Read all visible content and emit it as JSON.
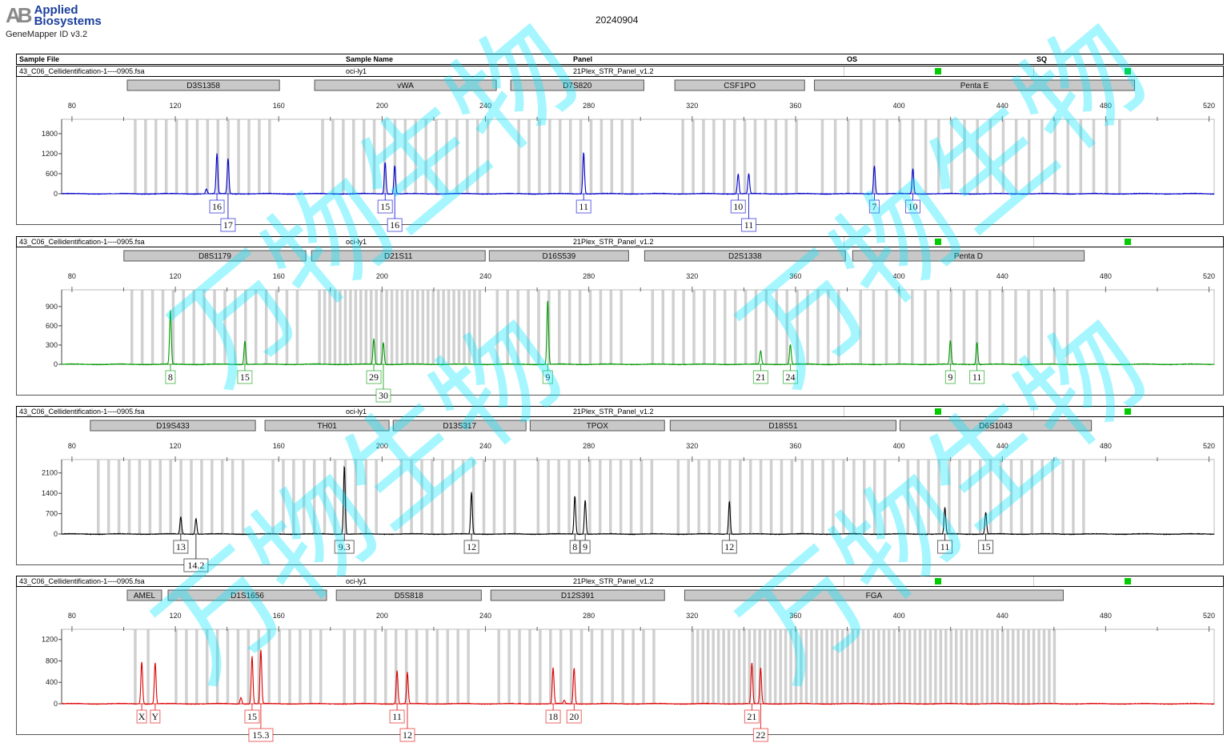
{
  "header": {
    "brand_mark": "AB",
    "brand_line1": "Applied",
    "brand_line2": "Biosystems",
    "app_version": "GeneMapper ID v3.2",
    "date": "20240904",
    "columns": [
      "Sample File",
      "Sample Name",
      "Panel",
      "OS",
      "SQ"
    ]
  },
  "watermark": "万物生物",
  "colors": {
    "blue": "#0000cc",
    "green": "#009900",
    "black": "#000000",
    "red": "#dd0000",
    "bin": "#d0d0d0",
    "marker": "#c8c8c8",
    "qc_pass": "#00cc00"
  },
  "chart_data": [
    {
      "type": "line",
      "dye": "blue",
      "sample_file": "43_C06_Cellidentification-1----0905.fsa",
      "sample_name": "oci-ly1",
      "panel": "21Plex_STR_Panel_v1.2",
      "os": "pass",
      "sq": "pass",
      "xlim": [
        76,
        522
      ],
      "xticks": [
        80,
        120,
        160,
        200,
        240,
        280,
        320,
        360,
        400,
        440,
        480,
        520
      ],
      "yticks": [
        0,
        600,
        1200,
        1800
      ],
      "ylim": [
        0,
        2230
      ],
      "markers": [
        {
          "name": "D3S1358",
          "range": [
            101.4,
            160.3
          ],
          "repeat": 4
        },
        {
          "name": "vWA",
          "range": [
            173.9,
            244.2
          ],
          "repeat": 4
        },
        {
          "name": "D7S820",
          "range": [
            249.8,
            301.3
          ],
          "repeat": 4
        },
        {
          "name": "CSF1PO",
          "range": [
            313.3,
            363.5
          ],
          "repeat": 4
        },
        {
          "name": "Penta E",
          "range": [
            367.3,
            491.2
          ],
          "repeat": 5
        }
      ],
      "peaks": [
        {
          "size": 132.0,
          "height": 150
        },
        {
          "size": 136.1,
          "height": 1200,
          "allele": "16"
        },
        {
          "size": 140.4,
          "height": 1050,
          "allele": "17"
        },
        {
          "size": 201.2,
          "height": 950,
          "allele": "15"
        },
        {
          "size": 204.9,
          "height": 850,
          "allele": "16"
        },
        {
          "size": 278.0,
          "height": 1250,
          "allele": "11"
        },
        {
          "size": 337.8,
          "height": 600,
          "allele": "10"
        },
        {
          "size": 341.9,
          "height": 600,
          "allele": "11"
        },
        {
          "size": 390.5,
          "height": 850,
          "allele": "7"
        },
        {
          "size": 405.4,
          "height": 750,
          "allele": "10"
        }
      ]
    },
    {
      "type": "line",
      "dye": "green",
      "sample_file": "43_C06_Cellidentification-1----0905.fsa",
      "sample_name": "oci-ly1",
      "panel": "21Plex_STR_Panel_v1.2",
      "os": "pass",
      "sq": "pass",
      "xlim": [
        76,
        522
      ],
      "xticks": [
        80,
        120,
        160,
        200,
        240,
        280,
        320,
        360,
        400,
        440,
        480,
        520
      ],
      "yticks": [
        0,
        300,
        600,
        900
      ],
      "ylim": [
        0,
        1160
      ],
      "markers": [
        {
          "name": "D8S1179",
          "range": [
            100.1,
            170.5
          ],
          "repeat": 4
        },
        {
          "name": "D21S11",
          "range": [
            172.7,
            239.9
          ],
          "repeat": 2
        },
        {
          "name": "D16S539",
          "range": [
            241.5,
            295.4
          ],
          "repeat": 4
        },
        {
          "name": "D2S1338",
          "range": [
            301.6,
            379.3
          ],
          "repeat": 4
        },
        {
          "name": "Penta D",
          "range": [
            382.1,
            471.7
          ],
          "repeat": 5
        }
      ],
      "peaks": [
        {
          "size": 118.1,
          "height": 840,
          "allele": "8"
        },
        {
          "size": 146.9,
          "height": 370,
          "allele": "15"
        },
        {
          "size": 196.8,
          "height": 395,
          "allele": "29"
        },
        {
          "size": 200.5,
          "height": 345,
          "allele": "30"
        },
        {
          "size": 264.1,
          "height": 1000,
          "allele": "9"
        },
        {
          "size": 346.5,
          "height": 210,
          "allele": "21"
        },
        {
          "size": 358.0,
          "height": 310,
          "allele": "24"
        },
        {
          "size": 419.9,
          "height": 370,
          "allele": "9"
        },
        {
          "size": 430.2,
          "height": 345,
          "allele": "11"
        }
      ]
    },
    {
      "type": "line",
      "dye": "black",
      "sample_file": "43_C06_Cellidentification-1----0905.fsa",
      "sample_name": "oci-ly1",
      "panel": "21Plex_STR_Panel_v1.2",
      "os": "pass",
      "sq": "pass",
      "xlim": [
        76,
        522
      ],
      "xticks": [
        80,
        120,
        160,
        200,
        240,
        280,
        320,
        360,
        400,
        440,
        480,
        520
      ],
      "yticks": [
        0,
        700,
        1400,
        2100
      ],
      "ylim": [
        0,
        2560
      ],
      "markers": [
        {
          "name": "D19S433",
          "range": [
            87.1,
            151.0
          ],
          "repeat": 4
        },
        {
          "name": "TH01",
          "range": [
            154.7,
            202.7
          ],
          "repeat": 4
        },
        {
          "name": "D13S317",
          "range": [
            204.3,
            255.7
          ],
          "repeat": 4
        },
        {
          "name": "TPOX",
          "range": [
            257.3,
            309.3
          ],
          "repeat": 4
        },
        {
          "name": "D18S51",
          "range": [
            311.5,
            398.9
          ],
          "repeat": 4
        },
        {
          "name": "D6S1043",
          "range": [
            400.4,
            474.5
          ],
          "repeat": 4
        }
      ],
      "peaks": [
        {
          "size": 122.1,
          "height": 590,
          "allele": "13"
        },
        {
          "size": 128.0,
          "height": 540,
          "allele": "14.2"
        },
        {
          "size": 185.4,
          "height": 2370,
          "allele": "9.3"
        },
        {
          "size": 234.6,
          "height": 1430,
          "allele": "12"
        },
        {
          "size": 274.6,
          "height": 1320,
          "allele": "8"
        },
        {
          "size": 278.6,
          "height": 1180,
          "allele": "9"
        },
        {
          "size": 334.4,
          "height": 1130,
          "allele": "12"
        },
        {
          "size": 417.8,
          "height": 915,
          "allele": "11"
        },
        {
          "size": 433.6,
          "height": 750,
          "allele": "15"
        }
      ]
    },
    {
      "type": "line",
      "dye": "red",
      "sample_file": "43_C06_Cellidentification-1----0905.fsa",
      "sample_name": "oci-ly1",
      "panel": "21Plex_STR_Panel_v1.2",
      "os": "pass",
      "sq": "pass",
      "xlim": [
        76,
        522
      ],
      "xticks": [
        80,
        120,
        160,
        200,
        240,
        280,
        320,
        360,
        400,
        440,
        480,
        520
      ],
      "yticks": [
        0,
        400,
        800,
        1200
      ],
      "ylim": [
        0,
        1390
      ],
      "markers": [
        {
          "name": "AMEL",
          "range": [
            101.4,
            114.7
          ],
          "repeat": 5
        },
        {
          "name": "D1S1656",
          "range": [
            117.2,
            178.5
          ],
          "repeat": 4
        },
        {
          "name": "D5S818",
          "range": [
            182.3,
            238.4
          ],
          "repeat": 4
        },
        {
          "name": "D12S391",
          "range": [
            242.1,
            309.3
          ],
          "repeat": 4
        },
        {
          "name": "FGA",
          "range": [
            317.1,
            463.6
          ],
          "repeat": 2
        }
      ],
      "peaks": [
        {
          "size": 107.0,
          "height": 790,
          "allele": "X"
        },
        {
          "size": 112.2,
          "height": 775,
          "allele": "Y"
        },
        {
          "size": 145.4,
          "height": 120
        },
        {
          "size": 149.7,
          "height": 890,
          "allele": "15"
        },
        {
          "size": 153.1,
          "height": 1000,
          "allele": "15.3"
        },
        {
          "size": 205.8,
          "height": 630,
          "allele": "11"
        },
        {
          "size": 209.8,
          "height": 585,
          "allele": "12"
        },
        {
          "size": 266.2,
          "height": 670,
          "allele": "18"
        },
        {
          "size": 270.5,
          "height": 60
        },
        {
          "size": 274.3,
          "height": 670,
          "allele": "20"
        },
        {
          "size": 343.1,
          "height": 760,
          "allele": "21"
        },
        {
          "size": 346.5,
          "height": 670,
          "allele": "22"
        }
      ]
    }
  ]
}
